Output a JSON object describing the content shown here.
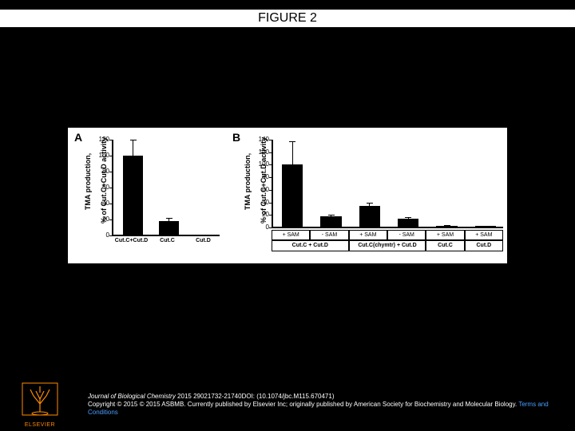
{
  "title": "FIGURE 2",
  "figure": {
    "background_color": "#ffffff",
    "panel_A": {
      "label": "A",
      "type": "bar",
      "ylabel_line1": "TMA production,",
      "ylabel_line2": "% of Cut.C+Cut.D activity",
      "ylim": [
        0,
        120
      ],
      "ytick_step": 20,
      "categories": [
        "Cut.C+Cut.D",
        "Cut.C",
        "Cut.D"
      ],
      "values": [
        100,
        18,
        0.5
      ],
      "errors": [
        20,
        4,
        0.3
      ],
      "bar_color": "#000000",
      "axis_color": "#000000",
      "label_fontsize": 9,
      "tick_fontsize": 8
    },
    "panel_B": {
      "label": "B",
      "type": "bar",
      "ylabel_line1": "TMA production,",
      "ylabel_line2": "% of Cut.C+Cut.D activity",
      "ylim": [
        0,
        140
      ],
      "ytick_step": 20,
      "top_labels": [
        "+ SAM",
        "- SAM",
        "+ SAM",
        "- SAM",
        "+ SAM",
        "+ SAM"
      ],
      "group_labels": [
        "Cut.C + Cut.D",
        "Cut.C(chymtr) + Cut.D",
        "Cut.C",
        "Cut.D"
      ],
      "group_spans": [
        2,
        2,
        1,
        1
      ],
      "values": [
        100,
        18,
        34,
        14,
        3,
        2
      ],
      "errors": [
        38,
        3,
        5,
        2,
        1,
        1
      ],
      "bar_color": "#000000",
      "axis_color": "#000000",
      "label_fontsize": 9,
      "tick_fontsize": 8
    }
  },
  "footer": {
    "citation_journal": "Journal of Biological Chemistry",
    "citation_rest": " 2015 29021732-21740DOI: (10.1074/jbc.M115.670471)",
    "copyright": "Copyright © 2015 © 2015 ASBMB. Currently published by Elsevier Inc; originally published by American Society for Biochemistry and Molecular Biology.",
    "terms_text": "Terms and Conditions"
  },
  "logo": {
    "publisher": "ELSEVIER",
    "tree_color": "#ff8a00",
    "text_color": "#ff8a00"
  }
}
